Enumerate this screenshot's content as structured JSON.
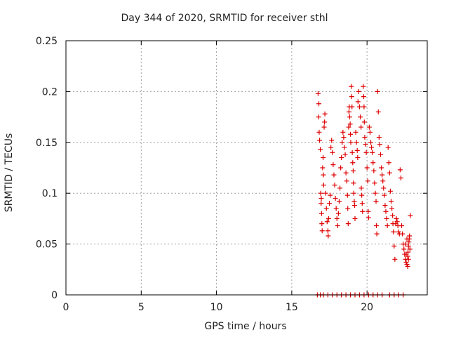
{
  "chart_data": {
    "type": "scatter",
    "title": "Day 344 of 2020, SRMTID for receiver sthl",
    "xlabel": "GPS time / hours",
    "ylabel": "SRMTID / TECUs",
    "xlim": [
      0,
      24
    ],
    "ylim": [
      0,
      0.25
    ],
    "x_ticks": [
      "0",
      "5",
      "10",
      "15",
      "20"
    ],
    "x_tick_values": [
      0,
      5,
      10,
      15,
      20
    ],
    "y_ticks": [
      "0",
      "0.05",
      "0.1",
      "0.15",
      "0.2",
      "0.25"
    ],
    "y_tick_values": [
      0,
      0.05,
      0.1,
      0.15,
      0.2,
      0.25
    ],
    "grid": true,
    "marker": "+",
    "color": "#dd0000",
    "series": [
      {
        "points": [
          [
            16.75,
            0.198
          ],
          [
            16.8,
            0.188
          ],
          [
            16.78,
            0.175
          ],
          [
            16.82,
            0.16
          ],
          [
            16.85,
            0.152
          ],
          [
            16.9,
            0.143
          ],
          [
            16.92,
            0.1
          ],
          [
            16.95,
            0.09
          ],
          [
            16.98,
            0.08
          ],
          [
            17.0,
            0.07
          ],
          [
            17.02,
            0.063
          ],
          [
            16.96,
            0.095
          ],
          [
            17.05,
            0.125
          ],
          [
            17.08,
            0.135
          ],
          [
            17.1,
            0.118
          ],
          [
            17.12,
            0.108
          ],
          [
            17.15,
            0.165
          ],
          [
            17.18,
            0.17
          ],
          [
            17.2,
            0.178
          ],
          [
            17.25,
            0.1
          ],
          [
            17.3,
            0.085
          ],
          [
            17.35,
            0.072
          ],
          [
            17.4,
            0.063
          ],
          [
            17.42,
            0.058
          ],
          [
            17.45,
            0.075
          ],
          [
            17.5,
            0.09
          ],
          [
            17.55,
            0.098
          ],
          [
            17.6,
            0.145
          ],
          [
            17.65,
            0.152
          ],
          [
            17.7,
            0.14
          ],
          [
            17.75,
            0.128
          ],
          [
            17.8,
            0.118
          ],
          [
            17.85,
            0.108
          ],
          [
            17.9,
            0.095
          ],
          [
            17.95,
            0.085
          ],
          [
            18.0,
            0.075
          ],
          [
            18.05,
            0.068
          ],
          [
            18.1,
            0.08
          ],
          [
            18.15,
            0.092
          ],
          [
            18.2,
            0.105
          ],
          [
            18.25,
            0.125
          ],
          [
            18.3,
            0.135
          ],
          [
            18.35,
            0.15
          ],
          [
            18.4,
            0.16
          ],
          [
            18.45,
            0.155
          ],
          [
            18.5,
            0.145
          ],
          [
            18.55,
            0.138
          ],
          [
            18.6,
            0.12
          ],
          [
            18.65,
            0.112
          ],
          [
            18.7,
            0.098
          ],
          [
            18.72,
            0.085
          ],
          [
            18.75,
            0.07
          ],
          [
            18.78,
            0.165
          ],
          [
            18.8,
            0.18
          ],
          [
            18.82,
            0.185
          ],
          [
            18.85,
            0.175
          ],
          [
            18.88,
            0.168
          ],
          [
            18.9,
            0.158
          ],
          [
            18.92,
            0.15
          ],
          [
            18.95,
            0.205
          ],
          [
            18.98,
            0.195
          ],
          [
            19.0,
            0.185
          ],
          [
            19.02,
            0.14
          ],
          [
            19.05,
            0.13
          ],
          [
            19.08,
            0.122
          ],
          [
            19.1,
            0.11
          ],
          [
            19.12,
            0.1
          ],
          [
            19.15,
            0.092
          ],
          [
            19.18,
            0.088
          ],
          [
            19.2,
            0.075
          ],
          [
            19.25,
            0.16
          ],
          [
            19.3,
            0.15
          ],
          [
            19.35,
            0.142
          ],
          [
            19.38,
            0.135
          ],
          [
            19.4,
            0.19
          ],
          [
            19.45,
            0.2
          ],
          [
            19.5,
            0.185
          ],
          [
            19.55,
            0.175
          ],
          [
            19.6,
            0.165
          ],
          [
            19.62,
            0.105
          ],
          [
            19.65,
            0.098
          ],
          [
            19.68,
            0.09
          ],
          [
            19.7,
            0.082
          ],
          [
            19.75,
            0.205
          ],
          [
            19.78,
            0.195
          ],
          [
            19.8,
            0.185
          ],
          [
            19.82,
            0.17
          ],
          [
            19.85,
            0.155
          ],
          [
            19.9,
            0.148
          ],
          [
            19.95,
            0.14
          ],
          [
            20.0,
            0.125
          ],
          [
            20.05,
            0.112
          ],
          [
            20.08,
            0.082
          ],
          [
            20.1,
            0.076
          ],
          [
            20.15,
            0.165
          ],
          [
            20.2,
            0.16
          ],
          [
            20.25,
            0.15
          ],
          [
            20.3,
            0.145
          ],
          [
            20.35,
            0.14
          ],
          [
            20.4,
            0.13
          ],
          [
            20.45,
            0.122
          ],
          [
            20.5,
            0.11
          ],
          [
            20.55,
            0.1
          ],
          [
            20.6,
            0.092
          ],
          [
            20.62,
            0.068
          ],
          [
            20.65,
            0.06
          ],
          [
            20.7,
            0.2
          ],
          [
            20.75,
            0.18
          ],
          [
            20.8,
            0.155
          ],
          [
            20.85,
            0.148
          ],
          [
            20.9,
            0.138
          ],
          [
            20.95,
            0.125
          ],
          [
            21.0,
            0.118
          ],
          [
            21.05,
            0.112
          ],
          [
            21.1,
            0.105
          ],
          [
            21.15,
            0.098
          ],
          [
            21.2,
            0.088
          ],
          [
            21.25,
            0.082
          ],
          [
            21.3,
            0.075
          ],
          [
            21.35,
            0.068
          ],
          [
            21.4,
            0.145
          ],
          [
            21.45,
            0.13
          ],
          [
            21.5,
            0.12
          ],
          [
            21.55,
            0.102
          ],
          [
            21.6,
            0.092
          ],
          [
            21.65,
            0.085
          ],
          [
            21.7,
            0.078
          ],
          [
            21.72,
            0.07
          ],
          [
            21.75,
            0.062
          ],
          [
            21.8,
            0.048
          ],
          [
            21.85,
            0.035
          ],
          [
            21.9,
            0.07
          ],
          [
            21.95,
            0.075
          ],
          [
            22.0,
            0.072
          ],
          [
            22.05,
            0.068
          ],
          [
            22.1,
            0.062
          ],
          [
            22.15,
            0.06
          ],
          [
            22.2,
            0.123
          ],
          [
            22.25,
            0.115
          ],
          [
            22.3,
            0.068
          ],
          [
            22.35,
            0.06
          ],
          [
            22.4,
            0.05
          ],
          [
            22.45,
            0.045
          ],
          [
            22.5,
            0.04
          ],
          [
            22.55,
            0.035
          ],
          [
            22.6,
            0.032
          ],
          [
            22.65,
            0.03
          ],
          [
            22.7,
            0.038
          ],
          [
            22.72,
            0.042
          ],
          [
            22.75,
            0.048
          ],
          [
            22.78,
            0.052
          ],
          [
            22.8,
            0.055
          ],
          [
            22.82,
            0.058
          ],
          [
            22.85,
            0.045
          ],
          [
            22.88,
            0.078
          ],
          [
            22.7,
            0.028
          ],
          [
            22.6,
            0.04
          ],
          [
            22.55,
            0.05
          ],
          [
            22.65,
            0.055
          ],
          [
            22.75,
            0.035
          ],
          [
            16.7,
            0.0
          ],
          [
            16.9,
            0.0
          ],
          [
            17.1,
            0.0
          ],
          [
            17.4,
            0.0
          ],
          [
            17.7,
            0.0
          ],
          [
            18.0,
            0.0
          ],
          [
            18.3,
            0.0
          ],
          [
            18.6,
            0.0
          ],
          [
            18.9,
            0.0
          ],
          [
            19.2,
            0.0
          ],
          [
            19.5,
            0.0
          ],
          [
            19.8,
            0.0
          ],
          [
            20.1,
            0.0
          ],
          [
            20.4,
            0.0
          ],
          [
            20.7,
            0.0
          ],
          [
            21.0,
            0.0
          ],
          [
            21.5,
            0.0
          ],
          [
            21.8,
            0.0
          ],
          [
            22.1,
            0.0
          ],
          [
            22.4,
            0.0
          ]
        ]
      }
    ]
  }
}
